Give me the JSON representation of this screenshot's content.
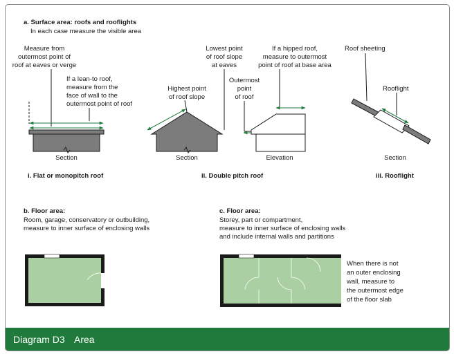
{
  "colors": {
    "accent_green": "#1f7a3c",
    "fill_green": "#a9cfa3",
    "fill_grey": "#7c7c7c",
    "text": "#1a1a1a"
  },
  "section_a": {
    "heading": "a. Surface area: roofs and rooflights",
    "subheading": "In each case measure the visible area",
    "flat_roof": {
      "note_top": [
        "Measure from",
        "outermost point of",
        "roof at eaves or verge"
      ],
      "note_leanto": [
        "If a lean-to roof,",
        "measure from the",
        "face of wall to the",
        "outermost point of roof"
      ],
      "section_label": "Section",
      "caption": "i. Flat or monopitch roof"
    },
    "double_pitch": {
      "note_highest": [
        "Highest point",
        "of roof slope"
      ],
      "note_lowest": [
        "Lowest point",
        "of roof slope",
        "at eaves"
      ],
      "note_outermost": [
        "Outermost",
        "point",
        "of roof"
      ],
      "note_hipped": [
        "If a hipped roof,",
        "measure to outermost",
        "point of roof at base area"
      ],
      "section_label": "Section",
      "elevation_label": "Elevation",
      "caption": "ii. Double pitch roof"
    },
    "rooflight": {
      "note_sheeting": "Roof sheeting",
      "note_rooflight": "Rooflight",
      "section_label": "Section",
      "caption": "iii. Rooflight"
    }
  },
  "section_b": {
    "heading": "b. Floor area:",
    "lines": [
      "Room, garage, conservatory or outbuilding,",
      "measure to inner surface of enclosing walls"
    ]
  },
  "section_c": {
    "heading": "c. Floor area:",
    "lines": [
      "Storey, part or compartment,",
      "measure to inner surface of enclosing walls",
      "and include internal walls and partitions"
    ],
    "side_note": [
      "When there is not",
      "an outer enclosing",
      "wall, measure to",
      "the outermost edge",
      "of the floor slab"
    ]
  },
  "footer": {
    "title": "Diagram D3",
    "word": "Area"
  }
}
